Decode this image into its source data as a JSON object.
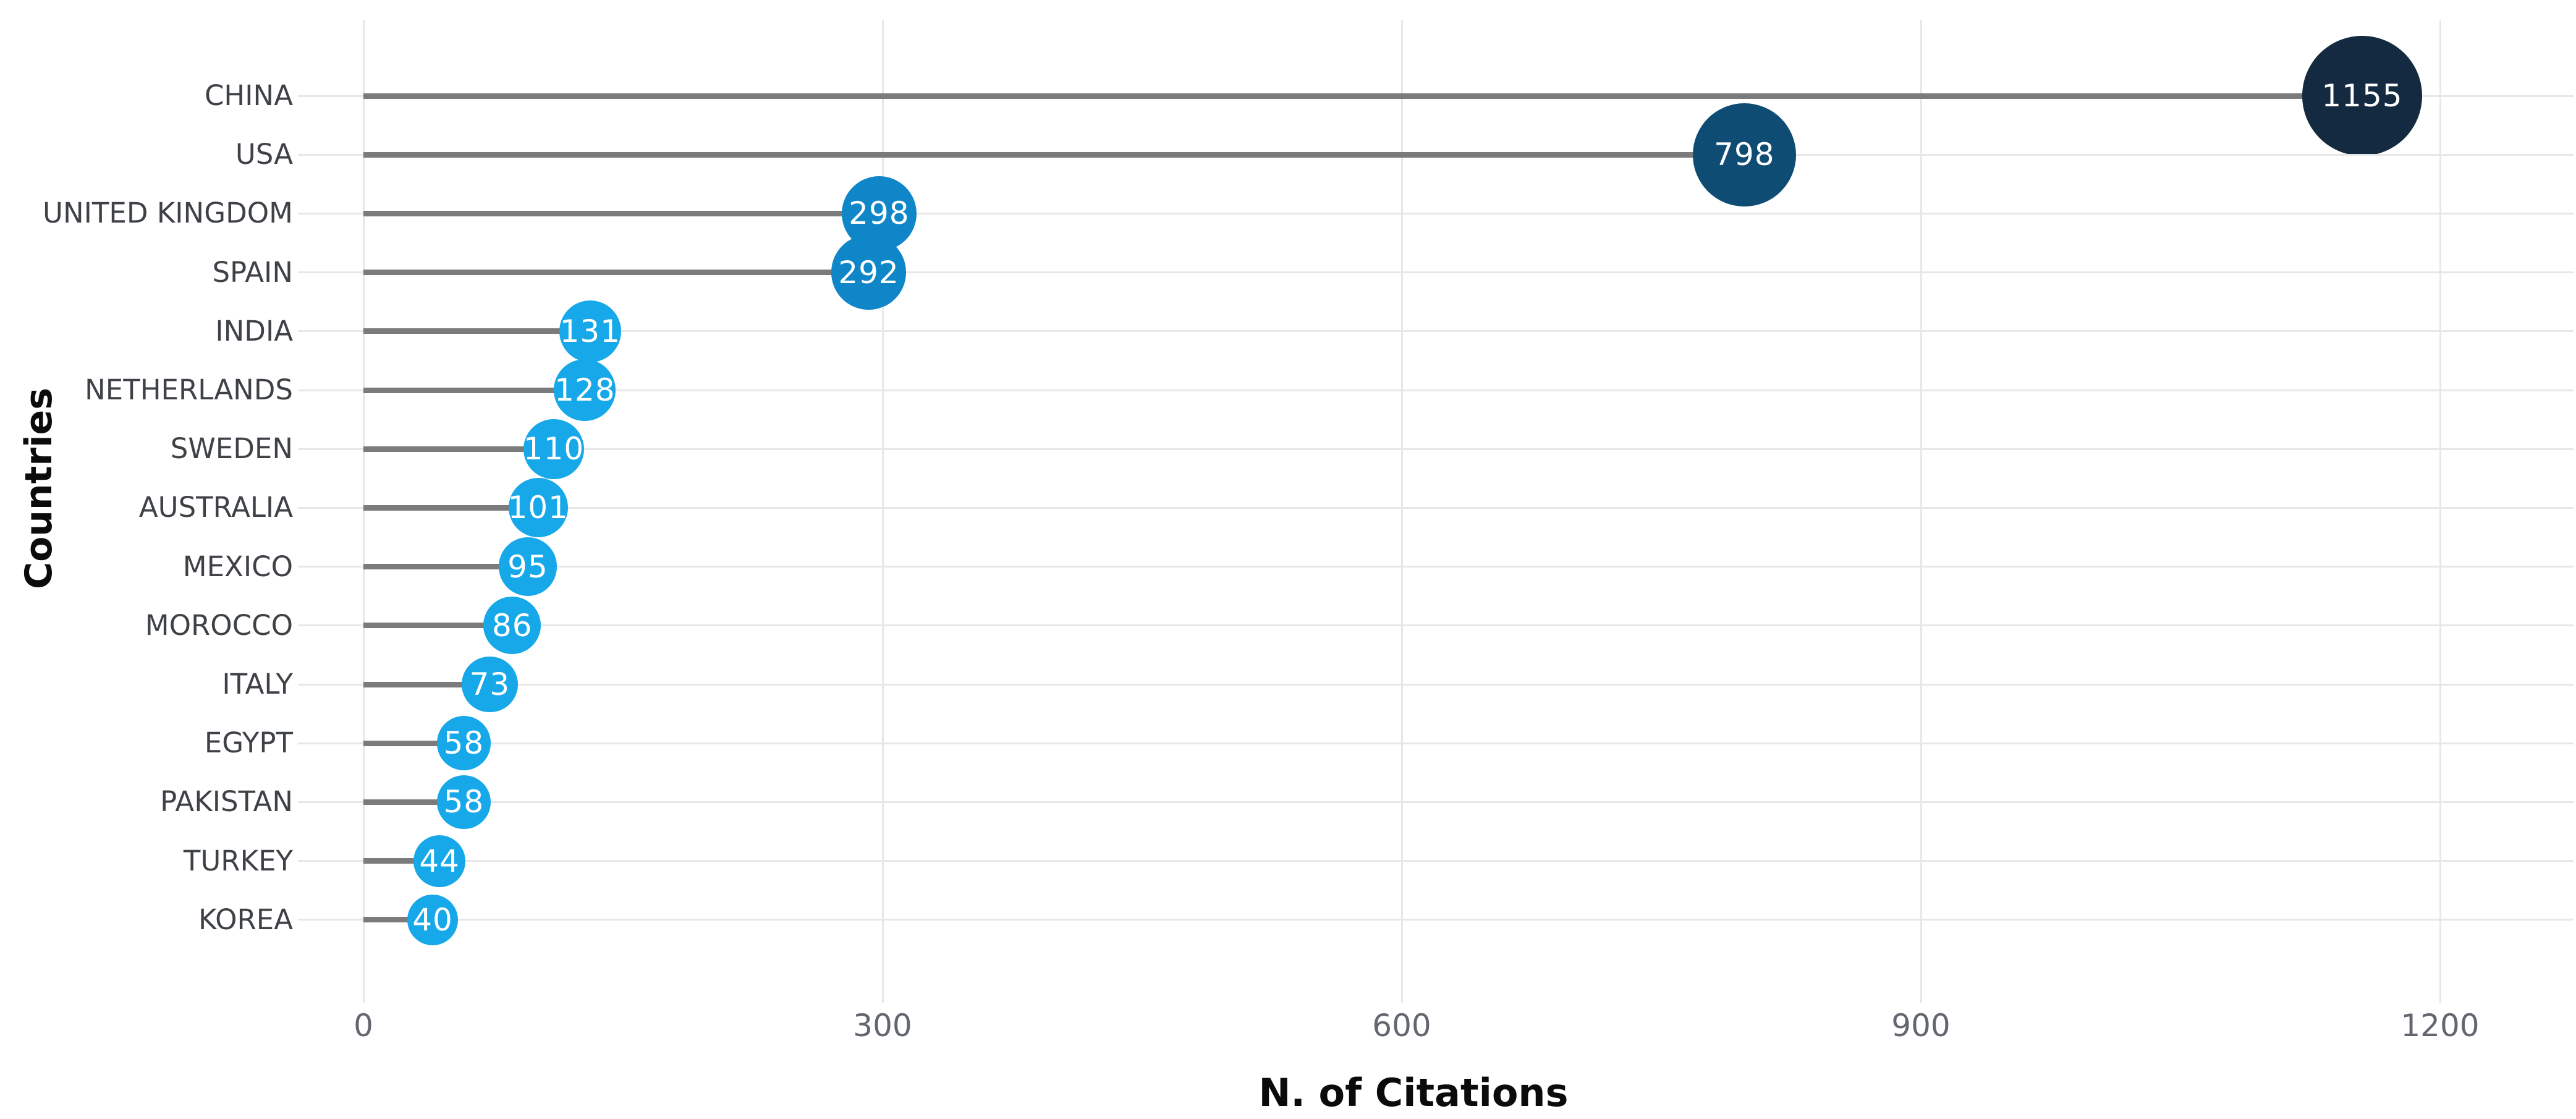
{
  "chart_data": {
    "type": "bar",
    "variant": "horizontal-lollipop",
    "title": "",
    "xlabel": "N. of Citations",
    "ylabel": "Countries",
    "xlim": [
      0,
      1270
    ],
    "xticks": [
      0,
      300,
      600,
      900,
      1200
    ],
    "grid": true,
    "legend": "none",
    "categories": [
      "CHINA",
      "USA",
      "UNITED KINGDOM",
      "SPAIN",
      "INDIA",
      "NETHERLANDS",
      "SWEDEN",
      "AUSTRALIA",
      "MEXICO",
      "MOROCCO",
      "ITALY",
      "EGYPT",
      "PAKISTAN",
      "TURKEY",
      "KOREA"
    ],
    "values": [
      1155,
      798,
      298,
      292,
      131,
      128,
      110,
      101,
      95,
      86,
      73,
      58,
      58,
      44,
      40
    ],
    "marker_colors": [
      "#132a40",
      "#0f4c74",
      "#0f86c8",
      "#0f86c8",
      "#16a8e9",
      "#16a8e9",
      "#16a8e9",
      "#16a8e9",
      "#16a8e9",
      "#16a8e9",
      "#16a8e9",
      "#16a8e9",
      "#16a8e9",
      "#16a8e9",
      "#16a8e9"
    ],
    "value_label_color": "#ffffff",
    "stem_color": "#7b7b7b",
    "gridline_color": "#e7e7e7",
    "category_label_color": "#3e4247",
    "tick_label_color": "#62666e",
    "background_color": "#ffffff"
  }
}
